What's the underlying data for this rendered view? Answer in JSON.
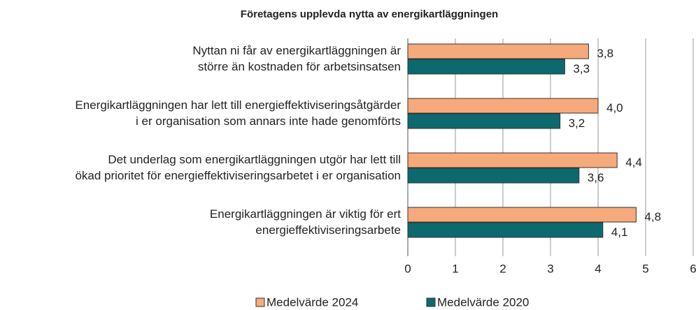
{
  "chart_data": {
    "type": "bar",
    "orientation": "horizontal",
    "title": "Företagens upplevda nytta av energikartläggningen",
    "categories": [
      "Nyttan ni får av energikartläggningen är\nstörre än kostnaden för arbetsinsatsen",
      "Energikartläggningen har lett till energieffektiviseringsåtgärder\ni er organisation som annars inte hade genomförts",
      "Det underlag som energikartläggningen utgör har lett till\nökad prioritet för energieffektiviseringsarbetet i er organisation",
      "Energikartläggningen är viktig för ert\nenergieffektiviseringsarbete"
    ],
    "series": [
      {
        "name": "Medelvärde 2024",
        "color": "#f6aa7b",
        "values": [
          3.8,
          4.0,
          4.4,
          4.8
        ],
        "value_labels": [
          "3,8",
          "4,0",
          "4,4",
          "4,8"
        ]
      },
      {
        "name": "Medelvärde 2020",
        "color": "#0c6a6e",
        "values": [
          3.3,
          3.2,
          3.6,
          4.1
        ],
        "value_labels": [
          "3,3",
          "3,2",
          "3,6",
          "4,1"
        ]
      }
    ],
    "xlim": [
      0,
      6
    ],
    "xticks": [
      0,
      1,
      2,
      3,
      4,
      5,
      6
    ],
    "grid": true,
    "legend": "bottom"
  }
}
